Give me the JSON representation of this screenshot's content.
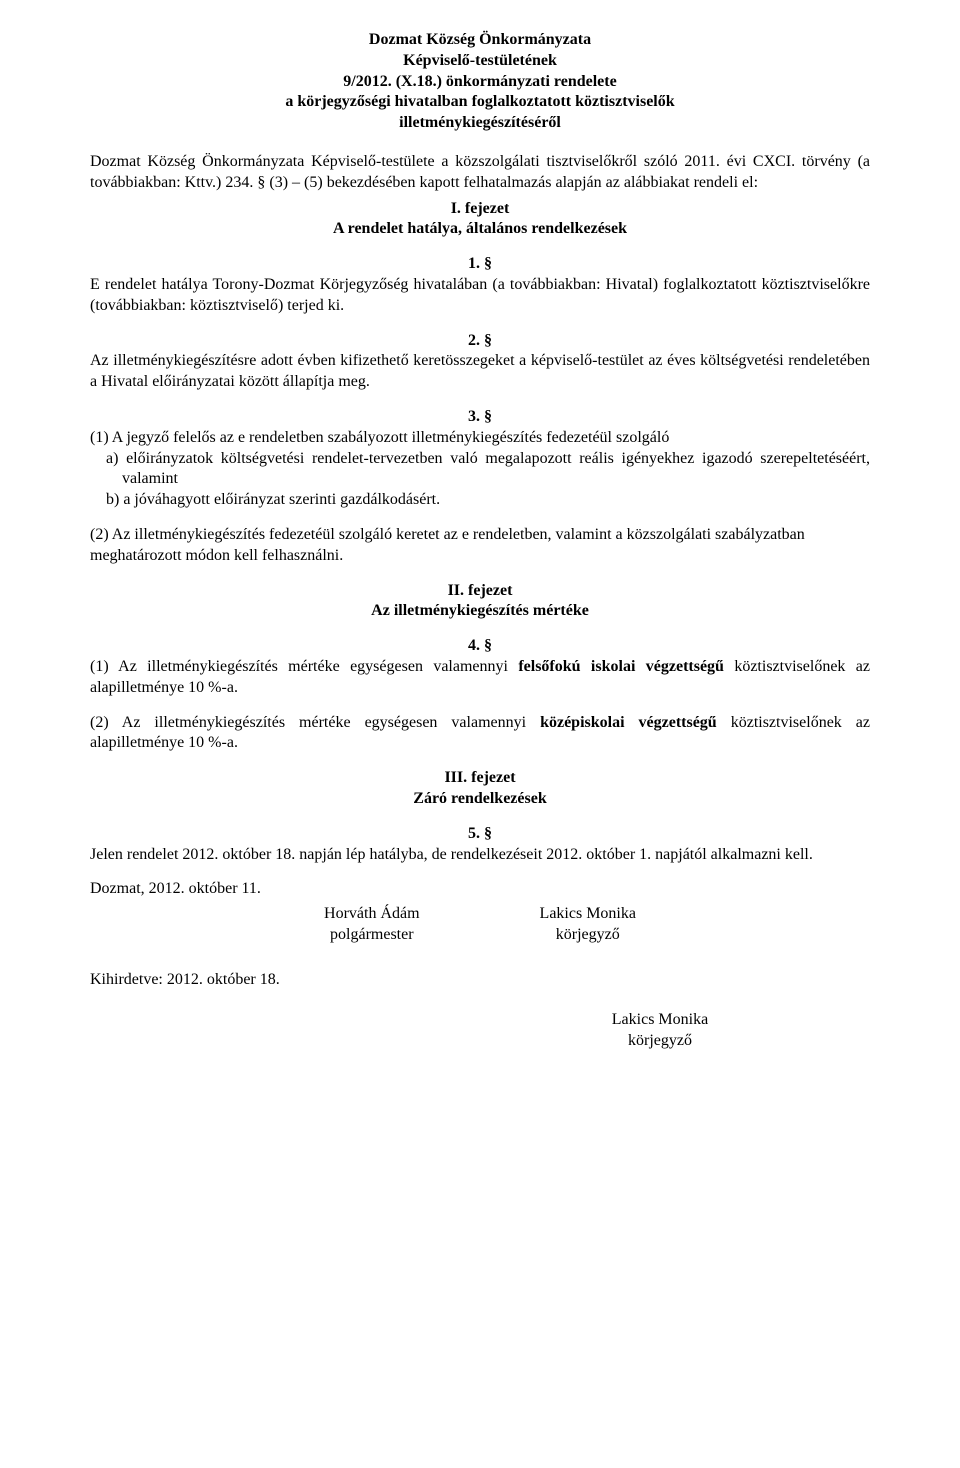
{
  "header": {
    "line1": "Dozmat Község Önkormányzata",
    "line2": "Képviselő-testületének",
    "line3": "9/2012. (X.18.) önkormányzati rendelete",
    "line4": "a körjegyzőségi hivatalban foglalkoztatott köztisztviselők",
    "line5": "illetménykiegészítéséről"
  },
  "preamble": "Dozmat Község Önkormányzata Képviselő-testülete a közszolgálati tisztviselőkről szóló 2011. évi CXCI. törvény (a továbbiakban: Kttv.) 234. § (3) – (5) bekezdésében kapott felhatalmazás alapján az alábbiakat rendeli el:",
  "chapter1": {
    "heading_line1": "I. fejezet",
    "heading_line2": "A rendelet hatálya, általános rendelkezések"
  },
  "sec1": {
    "num": "1. §",
    "text": "E rendelet hatálya Torony-Dozmat Körjegyzőség hivatalában (a továbbiakban: Hivatal) foglalkoztatott köztisztviselőkre (továbbiakban: köztisztviselő) terjed ki."
  },
  "sec2": {
    "num": "2. §",
    "text": "Az illetménykiegészítésre adott évben kifizethető keretösszegeket a képviselő-testület az éves költségvetési rendeletében a Hivatal előirányzatai között állapítja meg."
  },
  "sec3": {
    "num": "3. §",
    "p1": "(1) A jegyző felelős az e rendeletben szabályozott illetménykiegészítés fedezetéül szolgáló",
    "a": "a) előirányzatok költségvetési rendelet-tervezetben való megalapozott reális igényekhez igazodó szerepeltetéséért, valamint",
    "b": "b) a jóváhagyott előirányzat szerinti gazdálkodásért.",
    "p2": "(2) Az illetménykiegészítés fedezetéül szolgáló keretet az e rendeletben, valamint a közszolgálati szabályzatban meghatározott módon kell felhasználni."
  },
  "chapter2": {
    "heading_line1": "II. fejezet",
    "heading_line2": "Az illetménykiegészítés mértéke"
  },
  "sec4": {
    "num": "4. §",
    "p1_prefix": "(1) Az illetménykiegészítés mértéke egységesen valamennyi ",
    "p1_bold": "felsőfokú iskolai végzettségű",
    "p1_suffix": " köztisztviselőnek az alapilletménye 10 %-a.",
    "p2_prefix": "(2) Az illetménykiegészítés mértéke egységesen valamennyi ",
    "p2_bold": "középiskolai végzettségű",
    "p2_suffix": " köztisztviselőnek az alapilletménye 10 %-a."
  },
  "chapter3": {
    "heading_line1": "III. fejezet",
    "heading_line2": "Záró rendelkezések"
  },
  "sec5": {
    "num": "5. §",
    "text": "Jelen rendelet 2012. október 18. napján lép hatályba, de rendelkezéseit 2012. október 1. napjától alkalmazni kell."
  },
  "date_place": "Dozmat, 2012. október 11.",
  "sig1": {
    "name": "Horváth Ádám",
    "title": "polgármester"
  },
  "sig2": {
    "name": "Lakics Monika",
    "title": "körjegyző"
  },
  "published": "Kihirdetve: 2012. október 18.",
  "sig3": {
    "name": "Lakics Monika",
    "title": "körjegyző"
  }
}
